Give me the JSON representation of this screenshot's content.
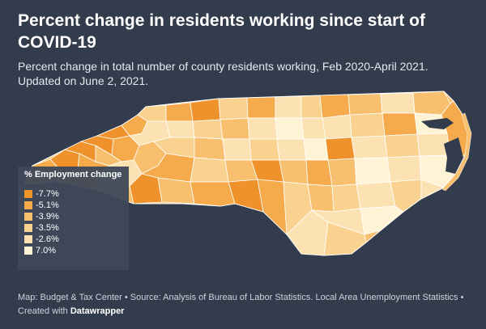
{
  "header": {
    "title": "Percent change in residents working since start of COVID-19",
    "subtitle": "Percent change in total number of county residents working, Feb 2020-April 2021. Updated on June 2, 2021."
  },
  "legend": {
    "title": "% Employment change",
    "items": [
      {
        "label": "-7.7%",
        "color": "#f0922c"
      },
      {
        "label": "-5.1%",
        "color": "#f5ab4c"
      },
      {
        "label": "-3.9%",
        "color": "#f8c06e"
      },
      {
        "label": "-3.5%",
        "color": "#fad290"
      },
      {
        "label": "-2.6%",
        "color": "#fce2b3"
      },
      {
        "label": "7.0%",
        "color": "#fff3d6"
      }
    ]
  },
  "footer": {
    "source": "Map: Budget & Tax Center • Source: Analysis of Bureau of Labor Statistics. Local Area Unemployment Statistics •",
    "created_prefix": "Created with",
    "created_brand": "Datawrapper"
  },
  "colors": {
    "background": "#333c4c",
    "county_border": "#ffffff",
    "water": "#333c4c"
  }
}
